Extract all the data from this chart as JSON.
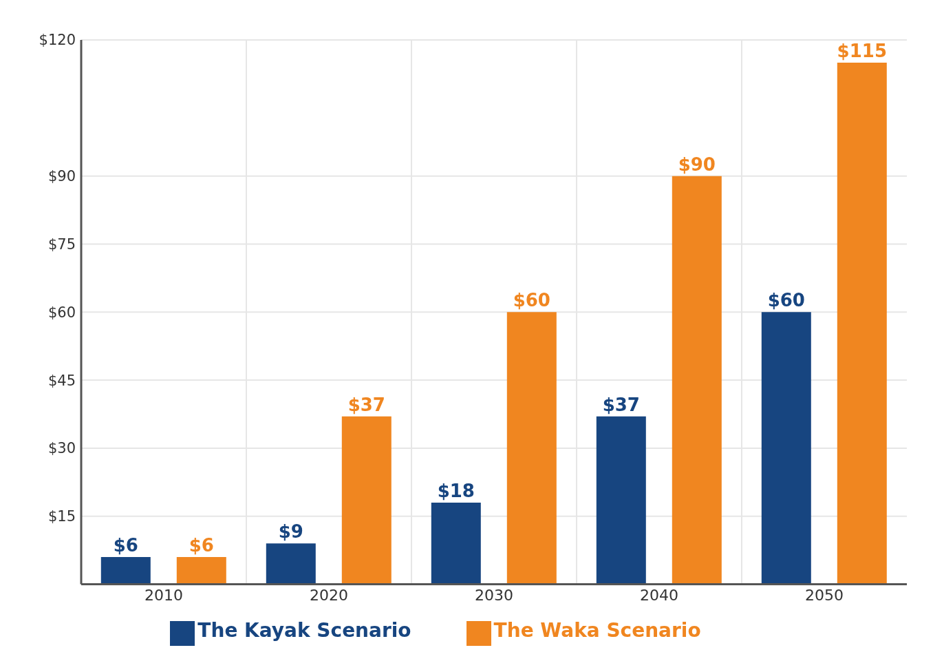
{
  "chart_data": {
    "type": "bar",
    "categories": [
      "2010",
      "2020",
      "2030",
      "2040",
      "2050"
    ],
    "series": [
      {
        "name": "The Kayak Scenario",
        "color": "#174580",
        "values": [
          6,
          9,
          18,
          37,
          60
        ],
        "value_labels": [
          "$6",
          "$9",
          "$18",
          "$37",
          "$60"
        ]
      },
      {
        "name": "The Waka Scenario",
        "color": "#f08620",
        "values": [
          6,
          37,
          60,
          90,
          115
        ],
        "value_labels": [
          "$6",
          "$37",
          "$60",
          "$90",
          "$115"
        ]
      }
    ],
    "ylim": [
      0,
      120
    ],
    "yticks": [
      {
        "value": 15,
        "label": "$15"
      },
      {
        "value": 30,
        "label": "$30"
      },
      {
        "value": 45,
        "label": "$45"
      },
      {
        "value": 60,
        "label": "$60"
      },
      {
        "value": 75,
        "label": "$75"
      },
      {
        "value": 90,
        "label": "$90"
      },
      {
        "value": 120,
        "label": "$120"
      }
    ],
    "grid": true,
    "legend": "bottom"
  }
}
